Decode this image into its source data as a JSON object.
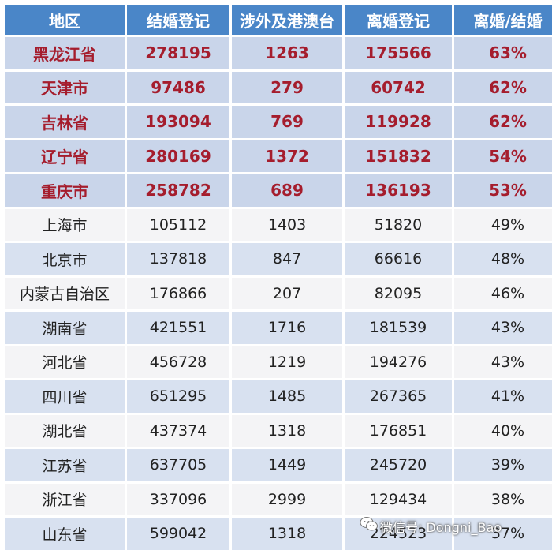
{
  "table": {
    "headers": [
      "地区",
      "结婚登记",
      "涉外及港澳台",
      "离婚登记",
      "离婚/结婚"
    ],
    "rows": [
      {
        "region": "黑龙江省",
        "marriage": "278195",
        "foreign": "1263",
        "divorce": "175566",
        "ratio": "63%",
        "highlight": true
      },
      {
        "region": "天津市",
        "marriage": "97486",
        "foreign": "279",
        "divorce": "60742",
        "ratio": "62%",
        "highlight": true
      },
      {
        "region": "吉林省",
        "marriage": "193094",
        "foreign": "769",
        "divorce": "119928",
        "ratio": "62%",
        "highlight": true
      },
      {
        "region": "辽宁省",
        "marriage": "280169",
        "foreign": "1372",
        "divorce": "151832",
        "ratio": "54%",
        "highlight": true
      },
      {
        "region": "重庆市",
        "marriage": "258782",
        "foreign": "689",
        "divorce": "136193",
        "ratio": "53%",
        "highlight": true
      },
      {
        "region": "上海市",
        "marriage": "105112",
        "foreign": "1403",
        "divorce": "51820",
        "ratio": "49%",
        "highlight": false
      },
      {
        "region": "北京市",
        "marriage": "137818",
        "foreign": "847",
        "divorce": "66616",
        "ratio": "48%",
        "highlight": false
      },
      {
        "region": "内蒙古自治区",
        "marriage": "176866",
        "foreign": "207",
        "divorce": "82095",
        "ratio": "46%",
        "highlight": false
      },
      {
        "region": "湖南省",
        "marriage": "421551",
        "foreign": "1716",
        "divorce": "181539",
        "ratio": "43%",
        "highlight": false
      },
      {
        "region": "河北省",
        "marriage": "456728",
        "foreign": "1219",
        "divorce": "194276",
        "ratio": "43%",
        "highlight": false
      },
      {
        "region": "四川省",
        "marriage": "651295",
        "foreign": "1485",
        "divorce": "267365",
        "ratio": "41%",
        "highlight": false
      },
      {
        "region": "湖北省",
        "marriage": "437374",
        "foreign": "1318",
        "divorce": "176851",
        "ratio": "40%",
        "highlight": false
      },
      {
        "region": "江苏省",
        "marriage": "637705",
        "foreign": "1449",
        "divorce": "245720",
        "ratio": "39%",
        "highlight": false
      },
      {
        "region": "浙江省",
        "marriage": "337096",
        "foreign": "2999",
        "divorce": "129434",
        "ratio": "38%",
        "highlight": false
      },
      {
        "region": "山东省",
        "marriage": "599042",
        "foreign": "1318",
        "divorce": "224523",
        "ratio": "37%",
        "highlight": false
      }
    ]
  },
  "watermark": {
    "text": "微信号: Dongni_Bao",
    "icon": "wechat-icon"
  },
  "colors": {
    "header_bg": "#4a86c8",
    "highlight_text": "#a51d2d",
    "highlight_row_bg": "#c9d5ea",
    "alt_row_bg": "#d8e1f0",
    "row_bg": "#f4f4f6"
  }
}
